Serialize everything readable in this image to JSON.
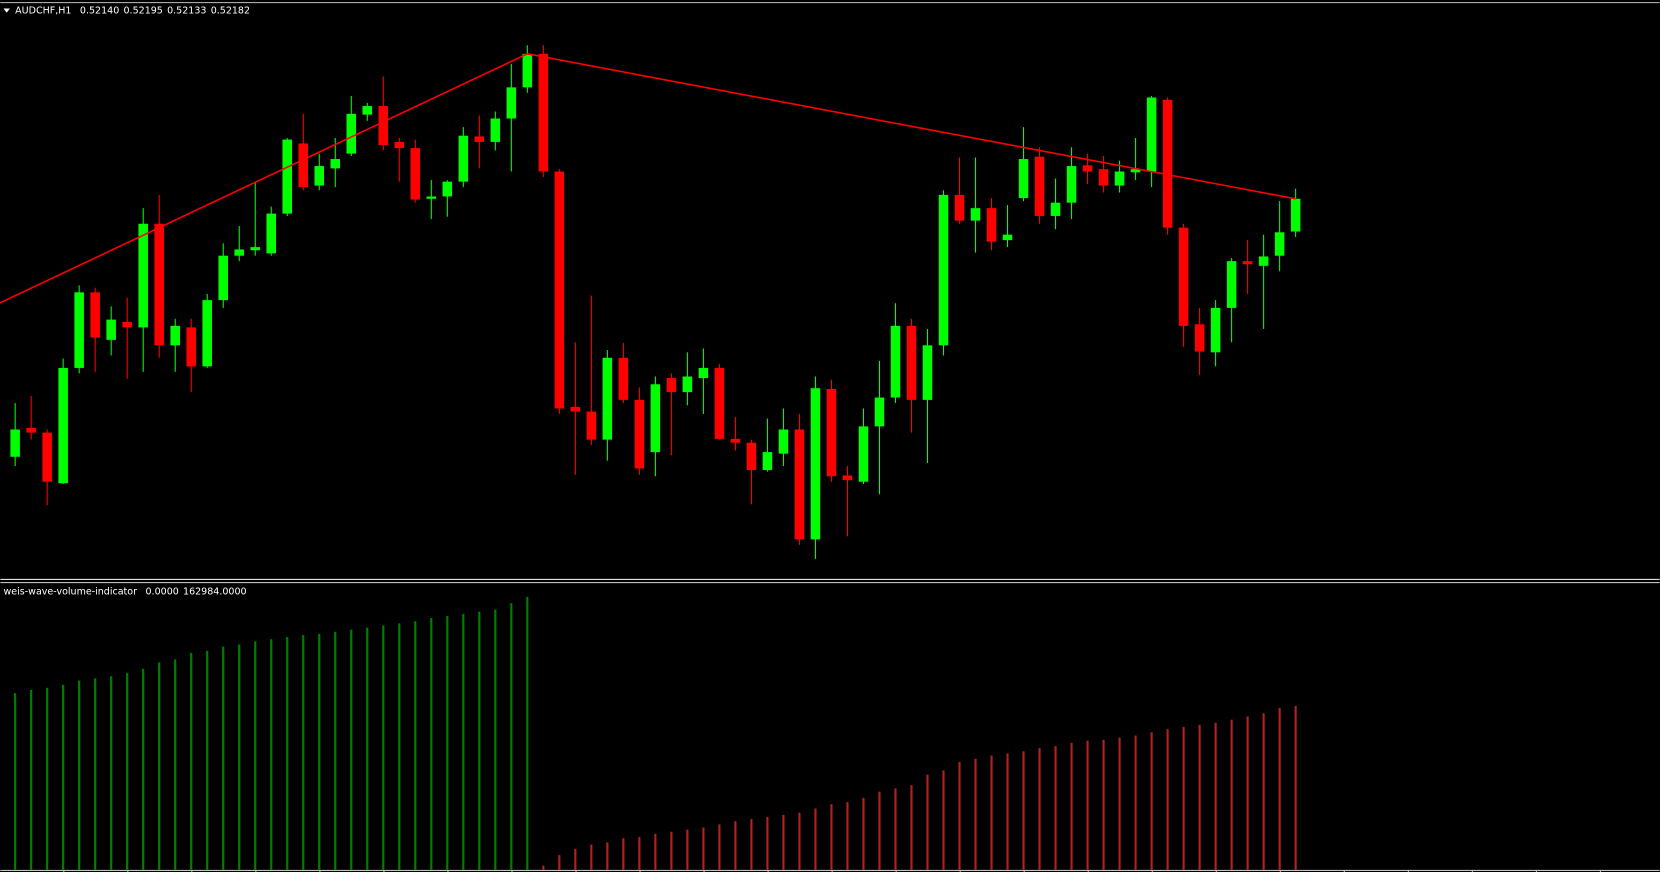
{
  "chart_data": [
    {
      "type": "candlestick",
      "title": "AUDCHF,H1",
      "header_values": [
        {
          "value": 0.5214,
          "label": "0.52140"
        },
        {
          "value": 0.52195,
          "label": "0.52195"
        },
        {
          "value": 0.52133,
          "label": "0.52133"
        },
        {
          "value": 0.52182,
          "label": "0.52182"
        }
      ],
      "up_color": "#00ff00",
      "down_color": "#ff0000",
      "ylim": [
        0.51693,
        0.52433
      ],
      "open": [
        0.51851,
        0.51888,
        0.51882,
        0.51817,
        0.51965,
        0.52062,
        0.52001,
        0.52024,
        0.52017,
        0.5215,
        0.51994,
        0.52017,
        0.51967,
        0.52052,
        0.52109,
        0.52116,
        0.52112,
        0.52163,
        0.52253,
        0.52199,
        0.52221,
        0.5224,
        0.5229,
        0.52301,
        0.52255,
        0.52247,
        0.52182,
        0.52185,
        0.52204,
        0.52262,
        0.52255,
        0.52285,
        0.52325,
        0.52368,
        0.52217,
        0.51915,
        0.51909,
        0.51873,
        0.51978,
        0.51924,
        0.51857,
        0.51952,
        0.51934,
        0.51952,
        0.51965,
        0.51874,
        0.51869,
        0.51834,
        0.51855,
        0.51886,
        0.51745,
        0.51938,
        0.51827,
        0.51819,
        0.5189,
        0.51927,
        0.52019,
        0.51924,
        0.51994,
        0.52187,
        0.52154,
        0.5217,
        0.52129,
        0.52183,
        0.52236,
        0.5216,
        0.52177,
        0.52225,
        0.5222,
        0.52199,
        0.52216,
        0.52217,
        0.52309,
        0.52145,
        0.52021,
        0.51985,
        0.52042,
        0.52102,
        0.52096,
        0.52109,
        0.5214
      ],
      "high": [
        0.5192,
        0.51929,
        0.51886,
        0.51977,
        0.52071,
        0.52068,
        0.52044,
        0.52055,
        0.5217,
        0.52187,
        0.52028,
        0.52028,
        0.5206,
        0.52125,
        0.52147,
        0.52204,
        0.52172,
        0.5226,
        0.52291,
        0.5224,
        0.5226,
        0.52314,
        0.52305,
        0.52339,
        0.5226,
        0.52258,
        0.52206,
        0.52206,
        0.52274,
        0.52289,
        0.52294,
        0.52355,
        0.52379,
        0.52379,
        0.5222,
        0.51998,
        0.52058,
        0.51988,
        0.51997,
        0.5194,
        0.51954,
        0.51958,
        0.51985,
        0.5199,
        0.5197,
        0.51902,
        0.51873,
        0.519,
        0.51913,
        0.51906,
        0.51954,
        0.5195,
        0.51839,
        0.51913,
        0.51974,
        0.52048,
        0.52028,
        0.52015,
        0.52193,
        0.52235,
        0.52235,
        0.52183,
        0.52174,
        0.52274,
        0.52248,
        0.52208,
        0.52248,
        0.5224,
        0.52237,
        0.52231,
        0.5226,
        0.52314,
        0.52312,
        0.5215,
        0.52042,
        0.52052,
        0.52106,
        0.52129,
        0.52136,
        0.52179,
        0.52195
      ],
      "low": [
        0.51839,
        0.51873,
        0.51789,
        0.51816,
        0.51958,
        0.5196,
        0.51981,
        0.51951,
        0.5196,
        0.51978,
        0.5196,
        0.51934,
        0.51965,
        0.52042,
        0.52102,
        0.52109,
        0.52109,
        0.5216,
        0.52193,
        0.52193,
        0.52197,
        0.52237,
        0.52282,
        0.52244,
        0.52204,
        0.52177,
        0.52156,
        0.52159,
        0.52197,
        0.52221,
        0.52244,
        0.52217,
        0.52318,
        0.5221,
        0.51906,
        0.51828,
        0.51866,
        0.51846,
        0.5192,
        0.51828,
        0.51826,
        0.51853,
        0.51917,
        0.51906,
        0.51873,
        0.51859,
        0.5179,
        0.51832,
        0.51839,
        0.51738,
        0.5172,
        0.51819,
        0.51749,
        0.51816,
        0.51803,
        0.5192,
        0.51882,
        0.51843,
        0.51981,
        0.5215,
        0.52113,
        0.52116,
        0.5212,
        0.52179,
        0.5215,
        0.52143,
        0.52156,
        0.52201,
        0.5219,
        0.5219,
        0.52206,
        0.52197,
        0.52136,
        0.51992,
        0.51956,
        0.51967,
        0.51998,
        0.5206,
        0.52015,
        0.52089,
        0.52133
      ],
      "close": [
        0.51886,
        0.51882,
        0.51819,
        0.51965,
        0.52062,
        0.52004,
        0.52027,
        0.52017,
        0.5215,
        0.51994,
        0.52019,
        0.51967,
        0.52052,
        0.52109,
        0.52117,
        0.5212,
        0.52163,
        0.52258,
        0.52197,
        0.52224,
        0.52233,
        0.52291,
        0.52301,
        0.52251,
        0.52247,
        0.52181,
        0.52185,
        0.52204,
        0.52263,
        0.52255,
        0.52285,
        0.52325,
        0.52368,
        0.52217,
        0.51913,
        0.51909,
        0.51873,
        0.51978,
        0.51924,
        0.51836,
        0.51944,
        0.51934,
        0.51954,
        0.51965,
        0.51874,
        0.51869,
        0.51834,
        0.51857,
        0.51886,
        0.51745,
        0.51939,
        0.51826,
        0.51821,
        0.5189,
        0.51927,
        0.52019,
        0.51924,
        0.51994,
        0.52187,
        0.52154,
        0.5217,
        0.52127,
        0.52136,
        0.52233,
        0.5216,
        0.52177,
        0.52224,
        0.52217,
        0.52199,
        0.52217,
        0.5222,
        0.52312,
        0.52145,
        0.52019,
        0.51986,
        0.52042,
        0.52102,
        0.52098,
        0.52108,
        0.52139,
        0.52182
      ],
      "trend_line": {
        "color": "#ff0000",
        "x": [
          -1,
          32,
          80
        ],
        "y": [
          0.52048,
          0.52368,
          0.52182
        ]
      }
    },
    {
      "type": "bar",
      "title": "weis-wave-volume-indicator",
      "header_values": [
        {
          "value": 0,
          "label": "0.0000"
        },
        {
          "value": 162984,
          "label": "162984.0000"
        }
      ],
      "ylim": [
        0,
        285000
      ],
      "series": [
        {
          "color": "#008000",
          "values": [
            175600,
            178800,
            180900,
            184000,
            188200,
            190300,
            192400,
            195600,
            199800,
            206100,
            209200,
            215600,
            217700,
            221900,
            224000,
            227100,
            229200,
            231300,
            233400,
            234500,
            236600,
            238700,
            240800,
            242900,
            245000,
            247100,
            250300,
            252400,
            254500,
            256600,
            258700,
            265000,
            271300,
            null,
            null,
            null,
            null,
            null,
            null,
            null,
            null,
            null,
            null,
            null,
            null,
            null,
            null,
            null,
            null,
            null,
            null,
            null,
            null,
            null,
            null,
            null,
            null,
            null,
            null,
            null,
            null,
            null,
            null,
            null,
            null,
            null,
            null,
            null,
            null,
            null,
            null,
            null,
            null,
            null,
            null,
            null,
            null,
            null,
            null,
            null,
            null
          ]
        },
        {
          "color": "#b22222",
          "values": [
            null,
            null,
            null,
            null,
            null,
            null,
            null,
            null,
            null,
            null,
            null,
            null,
            null,
            null,
            null,
            null,
            null,
            null,
            null,
            null,
            null,
            null,
            null,
            null,
            null,
            null,
            null,
            null,
            null,
            null,
            null,
            null,
            null,
            4200,
            14700,
            21000,
            25200,
            27300,
            31500,
            32600,
            35800,
            37900,
            40000,
            42100,
            45200,
            48400,
            50500,
            52600,
            54700,
            56800,
            61000,
            65200,
            67300,
            71500,
            77800,
            81000,
            84100,
            94600,
            98800,
            107300,
            110400,
            113600,
            115700,
            117800,
            120900,
            123000,
            126200,
            128300,
            129300,
            131400,
            133500,
            136700,
            139800,
            142000,
            144100,
            146200,
            149300,
            152500,
            155600,
            160900,
            162984
          ]
        }
      ]
    }
  ]
}
